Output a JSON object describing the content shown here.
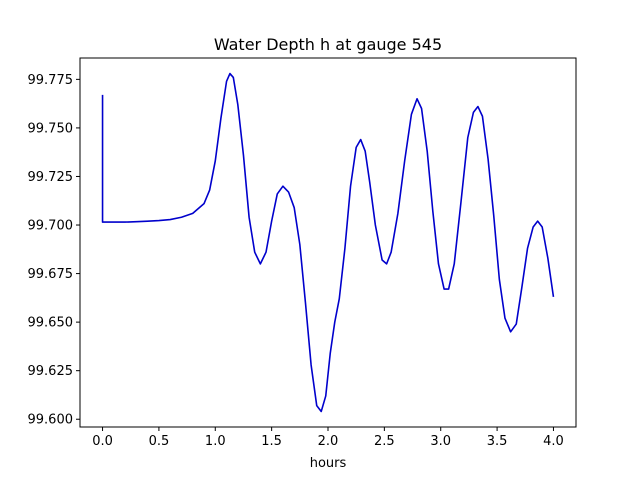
{
  "chart_data": {
    "type": "line",
    "title": "Water Depth h at gauge 545",
    "xlabel": "hours",
    "ylabel": "",
    "xlim": [
      -0.2,
      4.2
    ],
    "ylim": [
      99.596,
      99.786
    ],
    "x_ticks": [
      0.0,
      0.5,
      1.0,
      1.5,
      2.0,
      2.5,
      3.0,
      3.5,
      4.0
    ],
    "x_tick_labels": [
      "0.0",
      "0.5",
      "1.0",
      "1.5",
      "2.0",
      "2.5",
      "3.0",
      "3.5",
      "4.0"
    ],
    "y_ticks": [
      99.6,
      99.625,
      99.65,
      99.675,
      99.7,
      99.725,
      99.75,
      99.775
    ],
    "y_tick_labels": [
      "99.600",
      "99.625",
      "99.650",
      "99.675",
      "99.700",
      "99.725",
      "99.750",
      "99.775"
    ],
    "grid": false,
    "series": [
      {
        "color": "#0000cc",
        "points": [
          [
            0.0,
            99.767
          ],
          [
            0.0,
            99.7015
          ],
          [
            0.1,
            99.7015
          ],
          [
            0.2,
            99.7015
          ],
          [
            0.3,
            99.7017
          ],
          [
            0.4,
            99.702
          ],
          [
            0.5,
            99.7023
          ],
          [
            0.6,
            99.7028
          ],
          [
            0.7,
            99.704
          ],
          [
            0.8,
            99.706
          ],
          [
            0.9,
            99.711
          ],
          [
            0.95,
            99.718
          ],
          [
            1.0,
            99.733
          ],
          [
            1.05,
            99.755
          ],
          [
            1.1,
            99.774
          ],
          [
            1.13,
            99.778
          ],
          [
            1.16,
            99.776
          ],
          [
            1.2,
            99.762
          ],
          [
            1.25,
            99.736
          ],
          [
            1.3,
            99.704
          ],
          [
            1.35,
            99.686
          ],
          [
            1.4,
            99.68
          ],
          [
            1.45,
            99.686
          ],
          [
            1.5,
            99.702
          ],
          [
            1.55,
            99.716
          ],
          [
            1.6,
            99.72
          ],
          [
            1.65,
            99.717
          ],
          [
            1.7,
            99.709
          ],
          [
            1.75,
            99.69
          ],
          [
            1.8,
            99.66
          ],
          [
            1.85,
            99.628
          ],
          [
            1.9,
            99.607
          ],
          [
            1.94,
            99.604
          ],
          [
            1.98,
            99.612
          ],
          [
            2.02,
            99.634
          ],
          [
            2.06,
            99.65
          ],
          [
            2.1,
            99.662
          ],
          [
            2.15,
            99.688
          ],
          [
            2.2,
            99.72
          ],
          [
            2.25,
            99.74
          ],
          [
            2.29,
            99.744
          ],
          [
            2.33,
            99.738
          ],
          [
            2.37,
            99.722
          ],
          [
            2.42,
            99.7
          ],
          [
            2.48,
            99.682
          ],
          [
            2.52,
            99.68
          ],
          [
            2.56,
            99.686
          ],
          [
            2.62,
            99.706
          ],
          [
            2.68,
            99.733
          ],
          [
            2.74,
            99.757
          ],
          [
            2.79,
            99.765
          ],
          [
            2.83,
            99.76
          ],
          [
            2.88,
            99.738
          ],
          [
            2.93,
            99.707
          ],
          [
            2.98,
            99.68
          ],
          [
            3.03,
            99.667
          ],
          [
            3.07,
            99.667
          ],
          [
            3.12,
            99.68
          ],
          [
            3.18,
            99.712
          ],
          [
            3.24,
            99.745
          ],
          [
            3.29,
            99.758
          ],
          [
            3.33,
            99.761
          ],
          [
            3.37,
            99.756
          ],
          [
            3.42,
            99.734
          ],
          [
            3.47,
            99.705
          ],
          [
            3.52,
            99.672
          ],
          [
            3.57,
            99.652
          ],
          [
            3.62,
            99.645
          ],
          [
            3.67,
            99.649
          ],
          [
            3.72,
            99.668
          ],
          [
            3.77,
            99.688
          ],
          [
            3.82,
            99.699
          ],
          [
            3.86,
            99.702
          ],
          [
            3.9,
            99.699
          ],
          [
            3.95,
            99.683
          ],
          [
            4.0,
            99.663
          ]
        ]
      }
    ]
  }
}
